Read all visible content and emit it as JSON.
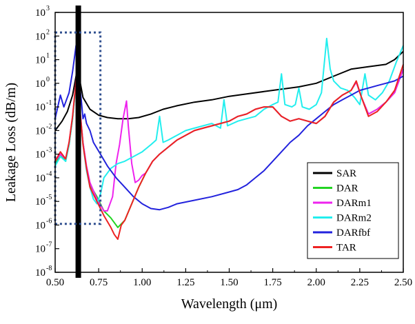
{
  "chart_data": {
    "type": "line",
    "y_scale": "log",
    "xlabel": "Wavelength (μm)",
    "ylabel": "Leakage Loss (dB/m)",
    "xlim": [
      0.5,
      2.5
    ],
    "ylim_log10": [
      -8,
      3
    ],
    "grid": false,
    "legend_position": "lower-right",
    "x_ticks": [
      "0.50",
      "0.75",
      "1.00",
      "1.25",
      "1.50",
      "1.75",
      "2.00",
      "2.25",
      "2.50"
    ],
    "y_ticks": [
      {
        "base": "10",
        "exp": "3"
      },
      {
        "base": "10",
        "exp": "2"
      },
      {
        "base": "10",
        "exp": "1"
      },
      {
        "base": "10",
        "exp": "0"
      },
      {
        "base": "10",
        "exp": "-1"
      },
      {
        "base": "10",
        "exp": "-2"
      },
      {
        "base": "10",
        "exp": "-3"
      },
      {
        "base": "10",
        "exp": "-4"
      },
      {
        "base": "10",
        "exp": "-5"
      },
      {
        "base": "10",
        "exp": "-6"
      },
      {
        "base": "10",
        "exp": "-7"
      },
      {
        "base": "10",
        "exp": "-8"
      }
    ],
    "annotations": {
      "vertical_marker_x": 0.633,
      "dotted_box": {
        "x": [
          0.5,
          0.76
        ],
        "y_log10": [
          -5.95,
          2.15
        ]
      }
    },
    "series": [
      {
        "name": "SAR",
        "color": "#000000",
        "points": [
          [
            0.5,
            -2.0
          ],
          [
            0.54,
            -1.6
          ],
          [
            0.57,
            -1.2
          ],
          [
            0.6,
            -0.5
          ],
          [
            0.62,
            0.3
          ],
          [
            0.633,
            0.9
          ],
          [
            0.64,
            0.2
          ],
          [
            0.66,
            -0.6
          ],
          [
            0.7,
            -1.1
          ],
          [
            0.75,
            -1.35
          ],
          [
            0.8,
            -1.45
          ],
          [
            0.86,
            -1.5
          ],
          [
            0.92,
            -1.5
          ],
          [
            0.98,
            -1.45
          ],
          [
            1.05,
            -1.3
          ],
          [
            1.12,
            -1.1
          ],
          [
            1.2,
            -0.95
          ],
          [
            1.3,
            -0.8
          ],
          [
            1.4,
            -0.7
          ],
          [
            1.5,
            -0.55
          ],
          [
            1.6,
            -0.45
          ],
          [
            1.7,
            -0.35
          ],
          [
            1.8,
            -0.25
          ],
          [
            1.9,
            -0.15
          ],
          [
            2.0,
            0.0
          ],
          [
            2.1,
            0.3
          ],
          [
            2.2,
            0.6
          ],
          [
            2.3,
            0.7
          ],
          [
            2.4,
            0.8
          ],
          [
            2.45,
            1.0
          ],
          [
            2.5,
            1.35
          ]
        ]
      },
      {
        "name": "DAR",
        "color": "#22d422",
        "points": [
          [
            0.5,
            -3.4
          ],
          [
            0.53,
            -3.0
          ],
          [
            0.56,
            -3.3
          ],
          [
            0.58,
            -2.6
          ],
          [
            0.6,
            -1.5
          ],
          [
            0.62,
            0.0
          ],
          [
            0.633,
            0.8
          ],
          [
            0.64,
            -1.0
          ],
          [
            0.66,
            -2.5
          ],
          [
            0.68,
            -3.6
          ],
          [
            0.7,
            -4.3
          ],
          [
            0.74,
            -4.8
          ],
          [
            0.78,
            -5.4
          ],
          [
            0.82,
            -5.7
          ],
          [
            0.86,
            -6.1
          ],
          [
            0.9,
            -5.8
          ],
          [
            0.94,
            -5.1
          ],
          [
            0.98,
            -4.4
          ],
          [
            1.02,
            -3.8
          ],
          [
            1.06,
            -3.3
          ],
          [
            1.1,
            -3.0
          ],
          [
            1.15,
            -2.7
          ],
          [
            1.2,
            -2.4
          ],
          [
            1.25,
            -2.2
          ],
          [
            1.3,
            -2.0
          ],
          [
            1.35,
            -1.9
          ],
          [
            1.4,
            -1.8
          ],
          [
            1.45,
            -1.7
          ],
          [
            1.5,
            -1.6
          ],
          [
            1.55,
            -1.4
          ],
          [
            1.6,
            -1.3
          ],
          [
            1.65,
            -1.1
          ],
          [
            1.7,
            -1.0
          ],
          [
            1.75,
            -1.0
          ],
          [
            1.8,
            -1.4
          ],
          [
            1.85,
            -1.6
          ],
          [
            1.9,
            -1.5
          ],
          [
            1.95,
            -1.6
          ],
          [
            2.0,
            -1.7
          ],
          [
            2.05,
            -1.4
          ],
          [
            2.1,
            -0.8
          ],
          [
            2.15,
            -0.5
          ],
          [
            2.2,
            -0.3
          ],
          [
            2.23,
            0.05
          ],
          [
            2.26,
            -0.6
          ],
          [
            2.3,
            -1.3
          ],
          [
            2.35,
            -1.1
          ],
          [
            2.4,
            -0.8
          ],
          [
            2.45,
            -0.4
          ],
          [
            2.5,
            0.6
          ]
        ]
      },
      {
        "name": "DARm1",
        "color": "#ee22ee",
        "points": [
          [
            0.5,
            -3.3
          ],
          [
            0.53,
            -3.0
          ],
          [
            0.56,
            -3.2
          ],
          [
            0.58,
            -2.5
          ],
          [
            0.6,
            -1.4
          ],
          [
            0.62,
            0.1
          ],
          [
            0.633,
            0.8
          ],
          [
            0.64,
            -0.9
          ],
          [
            0.66,
            -2.5
          ],
          [
            0.68,
            -3.5
          ],
          [
            0.7,
            -4.2
          ],
          [
            0.74,
            -4.9
          ],
          [
            0.78,
            -5.4
          ],
          [
            0.8,
            -5.4
          ],
          [
            0.83,
            -4.8
          ],
          [
            0.85,
            -3.4
          ],
          [
            0.87,
            -2.6
          ],
          [
            0.89,
            -1.5
          ],
          [
            0.91,
            -0.75
          ],
          [
            0.92,
            -1.8
          ],
          [
            0.94,
            -3.4
          ],
          [
            0.96,
            -4.2
          ],
          [
            0.98,
            -4.1
          ],
          [
            1.0,
            -3.9
          ],
          [
            1.02,
            -3.8
          ],
          [
            1.06,
            -3.3
          ],
          [
            1.1,
            -3.0
          ],
          [
            1.15,
            -2.7
          ],
          [
            1.2,
            -2.4
          ],
          [
            1.25,
            -2.2
          ],
          [
            1.3,
            -2.0
          ],
          [
            1.4,
            -1.8
          ],
          [
            1.5,
            -1.6
          ],
          [
            1.55,
            -1.4
          ],
          [
            1.6,
            -1.3
          ],
          [
            1.65,
            -1.1
          ],
          [
            1.7,
            -1.0
          ],
          [
            1.75,
            -1.0
          ],
          [
            1.8,
            -1.4
          ],
          [
            1.85,
            -1.6
          ],
          [
            1.9,
            -1.5
          ],
          [
            1.95,
            -1.6
          ],
          [
            2.0,
            -1.7
          ],
          [
            2.05,
            -1.4
          ],
          [
            2.1,
            -0.8
          ],
          [
            2.15,
            -0.5
          ],
          [
            2.2,
            -0.3
          ],
          [
            2.23,
            0.05
          ],
          [
            2.26,
            -0.6
          ],
          [
            2.3,
            -1.3
          ],
          [
            2.35,
            -1.1
          ],
          [
            2.4,
            -0.8
          ],
          [
            2.45,
            -0.4
          ],
          [
            2.5,
            0.6
          ]
        ]
      },
      {
        "name": "DARm2",
        "color": "#22eeee",
        "points": [
          [
            0.5,
            -3.5
          ],
          [
            0.53,
            -3.1
          ],
          [
            0.56,
            -3.3
          ],
          [
            0.58,
            -2.6
          ],
          [
            0.6,
            -1.5
          ],
          [
            0.62,
            0.0
          ],
          [
            0.633,
            0.8
          ],
          [
            0.64,
            -1.0
          ],
          [
            0.66,
            -2.6
          ],
          [
            0.68,
            -3.7
          ],
          [
            0.7,
            -4.4
          ],
          [
            0.72,
            -4.9
          ],
          [
            0.74,
            -5.1
          ],
          [
            0.76,
            -4.7
          ],
          [
            0.78,
            -4.0
          ],
          [
            0.82,
            -3.6
          ],
          [
            0.86,
            -3.4
          ],
          [
            0.9,
            -3.3
          ],
          [
            0.95,
            -3.1
          ],
          [
            1.0,
            -2.9
          ],
          [
            1.05,
            -2.6
          ],
          [
            1.08,
            -2.4
          ],
          [
            1.1,
            -1.4
          ],
          [
            1.12,
            -2.5
          ],
          [
            1.15,
            -2.4
          ],
          [
            1.2,
            -2.2
          ],
          [
            1.25,
            -2.0
          ],
          [
            1.3,
            -1.9
          ],
          [
            1.35,
            -1.8
          ],
          [
            1.4,
            -1.7
          ],
          [
            1.45,
            -1.9
          ],
          [
            1.47,
            -0.7
          ],
          [
            1.49,
            -1.8
          ],
          [
            1.55,
            -1.6
          ],
          [
            1.6,
            -1.5
          ],
          [
            1.65,
            -1.4
          ],
          [
            1.7,
            -1.1
          ],
          [
            1.75,
            -0.9
          ],
          [
            1.78,
            -0.8
          ],
          [
            1.8,
            0.4
          ],
          [
            1.82,
            -0.9
          ],
          [
            1.86,
            -1.0
          ],
          [
            1.88,
            -0.9
          ],
          [
            1.9,
            -0.2
          ],
          [
            1.92,
            -1.0
          ],
          [
            1.96,
            -1.1
          ],
          [
            2.0,
            -0.9
          ],
          [
            2.03,
            -0.4
          ],
          [
            2.06,
            1.9
          ],
          [
            2.08,
            0.6
          ],
          [
            2.1,
            0.1
          ],
          [
            2.14,
            -0.2
          ],
          [
            2.18,
            -0.3
          ],
          [
            2.22,
            -0.6
          ],
          [
            2.25,
            -0.9
          ],
          [
            2.28,
            0.4
          ],
          [
            2.3,
            -0.5
          ],
          [
            2.34,
            -0.7
          ],
          [
            2.38,
            -0.4
          ],
          [
            2.42,
            0.1
          ],
          [
            2.46,
            0.9
          ],
          [
            2.5,
            1.6
          ]
        ]
      },
      {
        "name": "DARfbf",
        "color": "#2222dd",
        "points": [
          [
            0.5,
            -1.5
          ],
          [
            0.53,
            -0.5
          ],
          [
            0.55,
            -1.0
          ],
          [
            0.56,
            -0.8
          ],
          [
            0.58,
            -0.4
          ],
          [
            0.6,
            0.5
          ],
          [
            0.62,
            1.6
          ],
          [
            0.633,
            0.9
          ],
          [
            0.64,
            0.0
          ],
          [
            0.65,
            -0.7
          ],
          [
            0.66,
            -1.5
          ],
          [
            0.67,
            -1.3
          ],
          [
            0.68,
            -1.7
          ],
          [
            0.7,
            -2.0
          ],
          [
            0.72,
            -2.5
          ],
          [
            0.76,
            -3.0
          ],
          [
            0.8,
            -3.5
          ],
          [
            0.85,
            -4.0
          ],
          [
            0.9,
            -4.4
          ],
          [
            0.95,
            -4.8
          ],
          [
            1.0,
            -5.1
          ],
          [
            1.05,
            -5.3
          ],
          [
            1.1,
            -5.35
          ],
          [
            1.15,
            -5.25
          ],
          [
            1.2,
            -5.1
          ],
          [
            1.3,
            -4.95
          ],
          [
            1.4,
            -4.8
          ],
          [
            1.5,
            -4.6
          ],
          [
            1.55,
            -4.5
          ],
          [
            1.6,
            -4.3
          ],
          [
            1.65,
            -4.0
          ],
          [
            1.7,
            -3.7
          ],
          [
            1.75,
            -3.3
          ],
          [
            1.8,
            -2.9
          ],
          [
            1.85,
            -2.5
          ],
          [
            1.9,
            -2.2
          ],
          [
            1.95,
            -1.8
          ],
          [
            2.0,
            -1.5
          ],
          [
            2.05,
            -1.2
          ],
          [
            2.1,
            -0.9
          ],
          [
            2.15,
            -0.7
          ],
          [
            2.2,
            -0.5
          ],
          [
            2.25,
            -0.3
          ],
          [
            2.3,
            -0.2
          ],
          [
            2.35,
            -0.1
          ],
          [
            2.4,
            0.0
          ],
          [
            2.45,
            0.1
          ],
          [
            2.5,
            0.3
          ]
        ]
      },
      {
        "name": "TAR",
        "color": "#ee2222",
        "points": [
          [
            0.5,
            -3.3
          ],
          [
            0.53,
            -2.9
          ],
          [
            0.56,
            -3.2
          ],
          [
            0.58,
            -2.5
          ],
          [
            0.6,
            -1.4
          ],
          [
            0.62,
            0.1
          ],
          [
            0.633,
            0.8
          ],
          [
            0.64,
            -0.9
          ],
          [
            0.66,
            -2.6
          ],
          [
            0.68,
            -3.6
          ],
          [
            0.7,
            -4.4
          ],
          [
            0.74,
            -5.0
          ],
          [
            0.78,
            -5.6
          ],
          [
            0.82,
            -6.1
          ],
          [
            0.84,
            -6.4
          ],
          [
            0.86,
            -6.6
          ],
          [
            0.88,
            -6.0
          ],
          [
            0.9,
            -5.8
          ],
          [
            0.94,
            -5.1
          ],
          [
            0.98,
            -4.4
          ],
          [
            1.02,
            -3.8
          ],
          [
            1.06,
            -3.3
          ],
          [
            1.1,
            -3.0
          ],
          [
            1.15,
            -2.7
          ],
          [
            1.2,
            -2.4
          ],
          [
            1.25,
            -2.2
          ],
          [
            1.3,
            -2.0
          ],
          [
            1.35,
            -1.9
          ],
          [
            1.4,
            -1.8
          ],
          [
            1.45,
            -1.7
          ],
          [
            1.5,
            -1.6
          ],
          [
            1.55,
            -1.4
          ],
          [
            1.6,
            -1.3
          ],
          [
            1.65,
            -1.1
          ],
          [
            1.7,
            -1.0
          ],
          [
            1.75,
            -1.0
          ],
          [
            1.8,
            -1.4
          ],
          [
            1.85,
            -1.6
          ],
          [
            1.9,
            -1.5
          ],
          [
            1.95,
            -1.6
          ],
          [
            2.0,
            -1.7
          ],
          [
            2.05,
            -1.4
          ],
          [
            2.1,
            -0.8
          ],
          [
            2.15,
            -0.5
          ],
          [
            2.2,
            -0.3
          ],
          [
            2.23,
            0.1
          ],
          [
            2.26,
            -0.6
          ],
          [
            2.3,
            -1.4
          ],
          [
            2.35,
            -1.2
          ],
          [
            2.4,
            -0.8
          ],
          [
            2.45,
            -0.3
          ],
          [
            2.5,
            0.8
          ]
        ]
      }
    ]
  }
}
